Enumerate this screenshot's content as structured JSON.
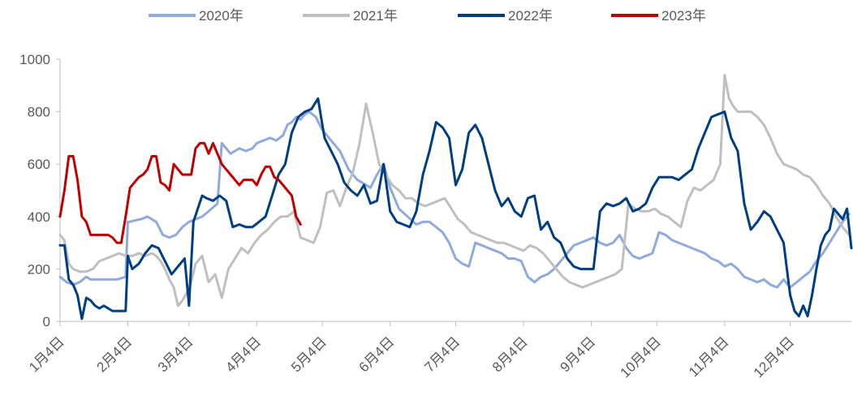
{
  "chart_data": {
    "type": "line",
    "title": "",
    "xlabel": "",
    "ylabel": "",
    "ylim": [
      0,
      1000
    ],
    "yticks": [
      0,
      200,
      400,
      600,
      800,
      1000
    ],
    "xlim": [
      0,
      362
    ],
    "categories": [
      "1月4日",
      "2月4日",
      "3月4日",
      "4月4日",
      "5月4日",
      "6月4日",
      "7月4日",
      "8月4日",
      "9月4日",
      "10月4日",
      "11月4日",
      "12月4日"
    ],
    "category_day_index": [
      0,
      31,
      59,
      90,
      120,
      151,
      181,
      212,
      243,
      273,
      304,
      334
    ],
    "grid": false,
    "legend_position": "top",
    "colors": {
      "2020年": "#8faadc",
      "2021年": "#bfbfbf",
      "2022年": "#003e84",
      "2023年": "#c00000"
    },
    "series": [
      {
        "name": "2020年",
        "color": "#8faadc",
        "x": [
          0,
          3,
          6,
          9,
          12,
          14,
          16,
          19,
          22,
          26,
          30,
          31,
          32,
          34,
          37,
          40,
          44,
          47,
          50,
          53,
          56,
          59,
          62,
          65,
          68,
          72,
          74,
          76,
          78,
          80,
          82,
          85,
          88,
          90,
          93,
          96,
          99,
          102,
          104,
          106,
          108,
          110,
          112,
          114,
          117,
          120,
          124,
          128,
          132,
          136,
          140,
          142,
          145,
          148,
          151,
          155,
          159,
          163,
          166,
          169,
          172,
          175,
          178,
          181,
          184,
          187,
          190,
          193,
          196,
          199,
          202,
          205,
          208,
          211,
          214,
          217,
          220,
          223,
          226,
          229,
          232,
          235,
          238,
          241,
          244,
          247,
          250,
          253,
          256,
          259,
          262,
          265,
          268,
          271,
          274,
          277,
          280,
          283,
          286,
          289,
          292,
          295,
          298,
          301,
          304,
          307,
          310,
          313,
          316,
          319,
          322,
          325,
          328,
          331,
          334,
          337,
          340,
          343,
          346,
          349,
          352,
          355,
          358,
          361
        ],
        "values": [
          170,
          150,
          140,
          150,
          170,
          160,
          160,
          160,
          160,
          160,
          170,
          380,
          380,
          385,
          390,
          400,
          380,
          330,
          320,
          330,
          360,
          380,
          390,
          400,
          420,
          450,
          680,
          660,
          640,
          650,
          660,
          650,
          660,
          680,
          690,
          700,
          690,
          710,
          750,
          760,
          780,
          770,
          790,
          800,
          780,
          730,
          690,
          650,
          580,
          540,
          520,
          510,
          560,
          600,
          510,
          430,
          400,
          370,
          380,
          380,
          360,
          340,
          300,
          240,
          220,
          210,
          300,
          290,
          280,
          270,
          260,
          240,
          240,
          230,
          170,
          150,
          170,
          180,
          200,
          230,
          260,
          290,
          300,
          310,
          320,
          300,
          290,
          300,
          330,
          280,
          250,
          240,
          250,
          260,
          340,
          330,
          310,
          300,
          290,
          280,
          270,
          260,
          240,
          230,
          210,
          220,
          200,
          170,
          160,
          150,
          160,
          140,
          130,
          160,
          130,
          150,
          170,
          190,
          230,
          260,
          300,
          340,
          380,
          410
        ]
      },
      {
        "name": "2021年",
        "color": "#bfbfbf",
        "x": [
          0,
          2,
          4,
          6,
          9,
          12,
          15,
          18,
          21,
          24,
          27,
          30,
          33,
          36,
          39,
          42,
          44,
          46,
          48,
          50,
          52,
          54,
          56,
          58,
          60,
          62,
          65,
          68,
          71,
          74,
          77,
          80,
          83,
          86,
          89,
          92,
          95,
          98,
          101,
          104,
          107,
          110,
          113,
          116,
          119,
          122,
          125,
          128,
          131,
          134,
          137,
          140,
          143,
          146,
          149,
          152,
          155,
          158,
          161,
          164,
          167,
          170,
          173,
          176,
          179,
          182,
          185,
          188,
          191,
          194,
          197,
          200,
          203,
          206,
          209,
          212,
          215,
          218,
          221,
          224,
          227,
          230,
          233,
          236,
          239,
          242,
          245,
          248,
          251,
          254,
          257,
          260,
          263,
          266,
          269,
          272,
          275,
          278,
          281,
          284,
          287,
          290,
          293,
          296,
          299,
          302,
          304,
          306,
          308,
          310,
          313,
          316,
          319,
          322,
          325,
          328,
          331,
          334,
          337,
          340,
          343,
          346,
          349,
          352,
          355,
          358,
          361
        ],
        "values": [
          330,
          310,
          220,
          200,
          190,
          190,
          200,
          230,
          240,
          250,
          260,
          250,
          250,
          260,
          250,
          260,
          250,
          230,
          200,
          160,
          130,
          60,
          80,
          110,
          150,
          220,
          250,
          150,
          180,
          90,
          200,
          240,
          280,
          260,
          300,
          330,
          350,
          380,
          400,
          400,
          420,
          320,
          310,
          300,
          360,
          490,
          500,
          440,
          510,
          570,
          680,
          830,
          720,
          600,
          560,
          520,
          500,
          470,
          470,
          450,
          440,
          450,
          460,
          470,
          430,
          390,
          370,
          340,
          330,
          320,
          310,
          300,
          300,
          290,
          280,
          270,
          290,
          280,
          260,
          230,
          200,
          170,
          150,
          140,
          130,
          140,
          150,
          160,
          170,
          180,
          200,
          450,
          430,
          420,
          420,
          430,
          410,
          400,
          380,
          360,
          460,
          510,
          500,
          520,
          540,
          600,
          940,
          850,
          820,
          800,
          800,
          800,
          780,
          750,
          700,
          640,
          600,
          590,
          580,
          560,
          550,
          520,
          480,
          450,
          400,
          360,
          330
        ]
      },
      {
        "name": "2022年",
        "color": "#003e84",
        "x": [
          0,
          2,
          4,
          6,
          8,
          10,
          12,
          14,
          16,
          18,
          20,
          22,
          24,
          26,
          28,
          30,
          31,
          33,
          36,
          39,
          42,
          45,
          48,
          51,
          54,
          57,
          59,
          61,
          63,
          65,
          67,
          70,
          73,
          76,
          79,
          82,
          85,
          88,
          91,
          94,
          97,
          100,
          103,
          106,
          109,
          112,
          115,
          118,
          121,
          124,
          127,
          130,
          133,
          136,
          139,
          142,
          145,
          148,
          151,
          154,
          157,
          160,
          163,
          166,
          169,
          172,
          175,
          178,
          181,
          184,
          187,
          190,
          193,
          196,
          199,
          202,
          205,
          208,
          211,
          214,
          217,
          220,
          223,
          226,
          229,
          232,
          235,
          238,
          241,
          244,
          247,
          250,
          253,
          256,
          259,
          262,
          265,
          268,
          271,
          274,
          277,
          280,
          283,
          286,
          289,
          292,
          295,
          298,
          301,
          304,
          307,
          310,
          313,
          316,
          319,
          322,
          325,
          328,
          331,
          334,
          336,
          338,
          340,
          342,
          344,
          346,
          348,
          350,
          352,
          354,
          356,
          358,
          360,
          362
        ],
        "values": [
          290,
          290,
          160,
          140,
          100,
          10,
          90,
          80,
          60,
          50,
          60,
          50,
          40,
          40,
          40,
          40,
          250,
          200,
          220,
          260,
          290,
          280,
          230,
          180,
          210,
          240,
          60,
          380,
          430,
          480,
          470,
          460,
          480,
          460,
          360,
          370,
          360,
          360,
          380,
          400,
          480,
          560,
          600,
          720,
          780,
          800,
          810,
          850,
          700,
          650,
          600,
          530,
          500,
          480,
          520,
          450,
          460,
          600,
          420,
          380,
          370,
          360,
          420,
          560,
          650,
          760,
          740,
          700,
          520,
          580,
          720,
          750,
          700,
          600,
          500,
          440,
          470,
          420,
          400,
          470,
          480,
          350,
          380,
          320,
          300,
          240,
          210,
          200,
          200,
          200,
          420,
          450,
          440,
          450,
          470,
          420,
          430,
          450,
          510,
          550,
          550,
          550,
          540,
          560,
          580,
          660,
          720,
          780,
          790,
          800,
          700,
          650,
          450,
          350,
          380,
          420,
          400,
          350,
          300,
          100,
          40,
          20,
          60,
          20,
          100,
          200,
          290,
          330,
          350,
          430,
          410,
          390,
          430,
          280
        ]
      },
      {
        "name": "2023年",
        "color": "#c00000",
        "x": [
          0,
          2,
          4,
          6,
          8,
          10,
          12,
          14,
          16,
          18,
          20,
          22,
          24,
          26,
          28,
          30,
          32,
          34,
          36,
          38,
          40,
          42,
          44,
          46,
          48,
          50,
          52,
          54,
          56,
          58,
          60,
          62,
          64,
          66,
          68,
          70,
          72,
          74,
          76,
          78,
          80,
          82,
          84,
          86,
          88,
          90,
          92,
          94,
          96,
          98,
          100,
          102,
          104,
          106,
          108,
          110
        ],
        "values": [
          400,
          500,
          630,
          630,
          540,
          400,
          380,
          330,
          330,
          330,
          330,
          330,
          320,
          300,
          300,
          400,
          510,
          530,
          550,
          560,
          580,
          630,
          630,
          530,
          520,
          500,
          600,
          580,
          560,
          560,
          560,
          660,
          680,
          680,
          640,
          680,
          640,
          600,
          580,
          560,
          540,
          520,
          540,
          540,
          540,
          520,
          560,
          590,
          590,
          550,
          540,
          520,
          500,
          480,
          400,
          370
        ]
      }
    ]
  }
}
